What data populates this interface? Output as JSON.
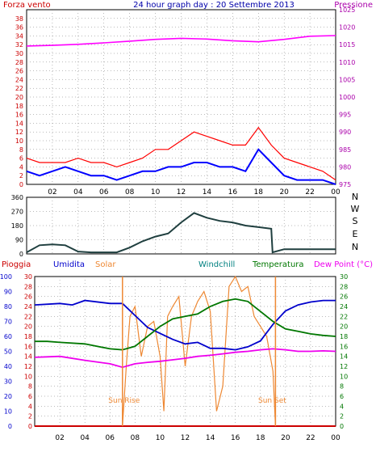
{
  "chart_data": [
    {
      "type": "line",
      "title": "24 hour graph day : 20 Settembre 2013",
      "ylabel_left": "Forza vento",
      "ylabel_right": "Pressione",
      "x_ticks": [
        "02",
        "04",
        "06",
        "08",
        "10",
        "12",
        "14",
        "16",
        "18",
        "20",
        "22",
        "00"
      ],
      "ylim_left": [
        0,
        40
      ],
      "y_ticks_left": [
        "0",
        "2",
        "4",
        "6",
        "8",
        "10",
        "12",
        "14",
        "16",
        "18",
        "20",
        "22",
        "24",
        "26",
        "28",
        "30",
        "32",
        "34",
        "36",
        "38",
        "40"
      ],
      "ylim_right": [
        975,
        1025
      ],
      "y_ticks_right": [
        "975",
        "980",
        "985",
        "990",
        "995",
        "1000",
        "1005",
        "1010",
        "1015",
        "1020",
        "1025"
      ],
      "colors": {
        "gust": "#ff0000",
        "wind": "#0000ff",
        "pressure": "#ff00ff",
        "axis_left": "#cc0000",
        "axis_right": "#aa00aa",
        "title": "#0000aa"
      },
      "series": [
        {
          "key": "pressure",
          "x": [
            0,
            2,
            4,
            6,
            8,
            10,
            12,
            14,
            16,
            18,
            20,
            22,
            24
          ],
          "values": [
            1014.6,
            1014.8,
            1015.1,
            1015.5,
            1016.0,
            1016.5,
            1016.8,
            1016.6,
            1016.1,
            1015.8,
            1016.5,
            1017.4,
            1017.6
          ]
        },
        {
          "key": "gust",
          "x": [
            0,
            1,
            2,
            3,
            4,
            5,
            6,
            7,
            8,
            9,
            10,
            11,
            12,
            13,
            14,
            15,
            16,
            17,
            18,
            19,
            20,
            21,
            22,
            23,
            24
          ],
          "values": [
            6,
            5,
            5,
            5,
            6,
            5,
            5,
            4,
            5,
            6,
            8,
            8,
            10,
            12,
            11,
            10,
            9,
            9,
            13,
            9,
            6,
            5,
            4,
            3,
            1
          ]
        },
        {
          "key": "wind",
          "x": [
            0,
            1,
            2,
            3,
            4,
            5,
            6,
            7,
            8,
            9,
            10,
            11,
            12,
            13,
            14,
            15,
            16,
            17,
            18,
            19,
            20,
            21,
            22,
            23,
            24
          ],
          "values": [
            3,
            2,
            3,
            4,
            3,
            2,
            2,
            1,
            2,
            3,
            3,
            4,
            4,
            5,
            5,
            4,
            4,
            3,
            8,
            5,
            2,
            1,
            1,
            1,
            0
          ]
        }
      ]
    },
    {
      "type": "line",
      "ylim": [
        0,
        360
      ],
      "y_ticks": [
        "0",
        "90",
        "180",
        "270",
        "360"
      ],
      "direction_labels": [
        "N",
        "W",
        "S",
        "E",
        "N"
      ],
      "x_ticks": [
        "02",
        "04",
        "06",
        "08",
        "10",
        "12",
        "14",
        "16",
        "18",
        "20",
        "22",
        "00"
      ],
      "series": [
        {
          "key": "direction",
          "x": [
            0,
            1,
            2,
            3,
            4,
            5,
            6,
            7,
            8,
            9,
            10,
            11,
            12,
            13,
            14,
            15,
            16,
            17,
            18,
            19,
            19.1,
            20,
            22,
            24
          ],
          "values": [
            10,
            55,
            60,
            55,
            15,
            10,
            10,
            10,
            40,
            80,
            110,
            130,
            200,
            260,
            230,
            210,
            200,
            180,
            170,
            160,
            10,
            30,
            30,
            30
          ]
        }
      ],
      "colors": {
        "line": "#1f3f3f"
      }
    },
    {
      "type": "line",
      "labels": {
        "rain": "Pioggia",
        "humidity": "Umidita",
        "solar": "Solar",
        "windchill": "Windchill",
        "temperature": "Temperatura",
        "dewpoint": "Dew Point (°C)"
      },
      "annotations": {
        "sunrise": "Sun Rise",
        "sunset": "Sun Set"
      },
      "x_ticks": [
        "02",
        "04",
        "06",
        "08",
        "10",
        "12",
        "14",
        "16",
        "18",
        "20",
        "22",
        "00"
      ],
      "y_ticks_humidity": [
        "0",
        "10",
        "20",
        "30",
        "40",
        "50",
        "60",
        "70",
        "80",
        "90",
        "100"
      ],
      "y_ticks_rain": [
        "0",
        "2",
        "4",
        "6",
        "8",
        "10",
        "12",
        "14",
        "16",
        "18",
        "20",
        "22",
        "24",
        "26",
        "28",
        "30"
      ],
      "y_ticks_temp": [
        "0",
        "2",
        "4",
        "6",
        "8",
        "10",
        "12",
        "14",
        "16",
        "18",
        "20",
        "22",
        "24",
        "26",
        "28",
        "30"
      ],
      "ylim_humidity": [
        0,
        100
      ],
      "ylim_temp": [
        0,
        30
      ],
      "sunrise_x": 7.0,
      "sunset_x": 19.2,
      "colors": {
        "rain": "#cc0000",
        "humidity": "#0000cc",
        "solar": "#ee8833",
        "windchill": "#008080",
        "temperature": "#007700",
        "dewpoint": "#ee00ee"
      },
      "series": [
        {
          "key": "humidity",
          "x": [
            0,
            2,
            3,
            4,
            6,
            7,
            8,
            9,
            10,
            11,
            12,
            13,
            14,
            15,
            16,
            17,
            18,
            19,
            20,
            21,
            22,
            23,
            24
          ],
          "values": [
            81,
            82,
            81,
            84,
            82,
            82,
            74,
            66,
            62,
            58,
            55,
            56,
            52,
            52,
            51,
            53,
            57,
            68,
            77,
            81,
            83,
            84,
            84
          ]
        },
        {
          "key": "temperature",
          "x": [
            0,
            1,
            2,
            4,
            6,
            7,
            8,
            9,
            10,
            11,
            12,
            13,
            14,
            15,
            16,
            17,
            18,
            19,
            20,
            21,
            22,
            23,
            24
          ],
          "values": [
            17.0,
            17.0,
            16.8,
            16.5,
            15.5,
            15.3,
            16.0,
            18.0,
            20.0,
            21.5,
            22.0,
            22.5,
            24.0,
            25.0,
            25.5,
            25.0,
            23.0,
            21.0,
            19.5,
            19.0,
            18.5,
            18.2,
            18.0
          ]
        },
        {
          "key": "dewpoint",
          "x": [
            0,
            1,
            2,
            4,
            6,
            7,
            8,
            9,
            10,
            11,
            12,
            13,
            14,
            15,
            16,
            17,
            18,
            19,
            20,
            21,
            22,
            23,
            24
          ],
          "values": [
            13.8,
            13.9,
            14.0,
            13.2,
            12.5,
            11.8,
            12.5,
            12.8,
            13.0,
            13.3,
            13.6,
            14.0,
            14.2,
            14.5,
            14.8,
            15.0,
            15.3,
            15.5,
            15.3,
            15.0,
            15.0,
            15.1,
            15.0
          ]
        },
        {
          "key": "solar",
          "x": [
            7.0,
            7.3,
            7.6,
            8.0,
            8.5,
            9.0,
            9.5,
            10.0,
            10.3,
            10.6,
            11.0,
            11.5,
            12.0,
            12.5,
            13.0,
            13.5,
            14.0,
            14.5,
            15.0,
            15.5,
            16.0,
            16.5,
            17.0,
            17.5,
            18.0,
            18.5,
            19.0,
            19.2
          ],
          "values": [
            0,
            12,
            22,
            24,
            14,
            20,
            21,
            14,
            3,
            22,
            24,
            26,
            12,
            22,
            25,
            27,
            23,
            3,
            8,
            28,
            30,
            27,
            28,
            22,
            20,
            18,
            11,
            0
          ]
        },
        {
          "key": "rain",
          "x": [
            0,
            24
          ],
          "values": [
            0,
            0
          ]
        }
      ]
    }
  ]
}
